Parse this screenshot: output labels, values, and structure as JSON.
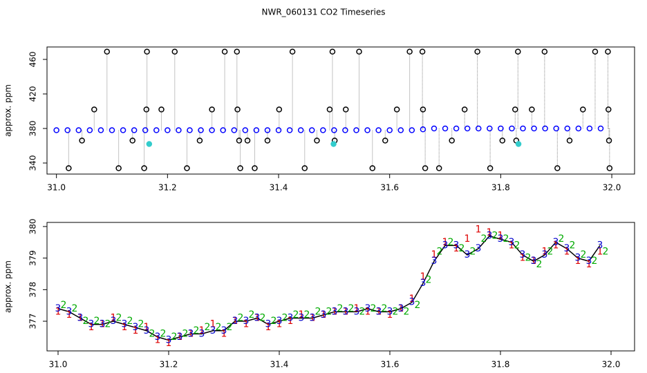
{
  "title": "NWR_060131  CO2 Timeseries",
  "chart_data": [
    {
      "type": "scatter",
      "ylabel": "approx. ppm",
      "xlim": [
        30.983,
        32.041
      ],
      "ylim": [
        327.2,
        474.4
      ],
      "xticks": [
        {
          "value": 31,
          "label": "31.0"
        },
        {
          "value": 31.2,
          "label": "31.2"
        },
        {
          "value": 31.4,
          "label": "31.4"
        },
        {
          "value": 31.6,
          "label": "31.6"
        },
        {
          "value": 31.8,
          "label": "31.8"
        },
        {
          "value": 32,
          "label": "32.0"
        }
      ],
      "yticks": [
        340,
        380,
        420,
        460
      ],
      "series": [
        {
          "color": "#0000ff",
          "x": [
            31.0,
            31.02,
            31.04,
            31.06,
            31.08,
            31.1,
            31.12,
            31.14,
            31.16,
            31.18,
            31.2,
            31.22,
            31.24,
            31.26,
            31.28,
            31.3,
            31.32,
            31.34,
            31.36,
            31.38,
            31.4,
            31.42,
            31.44,
            31.46,
            31.48,
            31.5,
            31.52,
            31.54,
            31.56,
            31.58,
            31.6,
            31.62,
            31.64,
            31.66,
            31.68,
            31.7,
            31.72,
            31.74,
            31.76,
            31.78,
            31.8,
            31.82,
            31.84,
            31.86,
            31.88,
            31.9,
            31.92,
            31.94,
            31.96,
            31.98
          ],
          "values": [
            378,
            378,
            378,
            378,
            378,
            378,
            378,
            378,
            378,
            378,
            378,
            378,
            378,
            378,
            378,
            378,
            378,
            378,
            378,
            378,
            378,
            378,
            378,
            378,
            378,
            378,
            378,
            378,
            378,
            378,
            378,
            378,
            378,
            379,
            380,
            380,
            380,
            380,
            380,
            380,
            380,
            380,
            380,
            380,
            380,
            380,
            380,
            380,
            380,
            380
          ]
        },
        {
          "color": "#000000",
          "stems": true,
          "x": [
            31.022,
            31.046,
            31.068,
            31.091,
            31.112,
            31.137,
            31.158,
            31.162,
            31.163,
            31.189,
            31.213,
            31.235,
            31.258,
            31.28,
            31.303,
            31.325,
            31.326,
            31.329,
            31.331,
            31.344,
            31.357,
            31.38,
            31.401,
            31.425,
            31.447,
            31.469,
            31.492,
            31.497,
            31.501,
            31.521,
            31.545,
            31.569,
            31.592,
            31.613,
            31.636,
            31.659,
            31.66,
            31.664,
            31.689,
            31.712,
            31.735,
            31.758,
            31.781,
            31.803,
            31.826,
            31.828,
            31.831,
            31.856,
            31.879,
            31.902,
            31.924,
            31.948,
            31.97,
            31.993,
            31.994,
            31.995,
            31.996
          ],
          "values": [
            334,
            366,
            402,
            469,
            334,
            366,
            334,
            402,
            469,
            402,
            469,
            334,
            366,
            402,
            469,
            469,
            402,
            366,
            334,
            366,
            334,
            366,
            402,
            469,
            334,
            366,
            402,
            469,
            366,
            402,
            469,
            334,
            366,
            402,
            469,
            469,
            402,
            334,
            334,
            366,
            402,
            469,
            334,
            366,
            402,
            366,
            469,
            402,
            469,
            334,
            366,
            402,
            469,
            469,
            402,
            366,
            334
          ]
        },
        {
          "color": "#33cccc",
          "x": [
            31.167,
            31.499,
            31.832
          ],
          "values": [
            362,
            362,
            362
          ]
        }
      ]
    },
    {
      "type": "symbols",
      "ylabel": "approx. ppm",
      "xlim": [
        30.98,
        32.0425
      ],
      "ylim": [
        376.06,
        380.13
      ],
      "xticks": [
        {
          "value": 31,
          "label": "31.0"
        },
        {
          "value": 31.2,
          "label": "31.2"
        },
        {
          "value": 31.4,
          "label": "31.4"
        },
        {
          "value": 31.6,
          "label": "31.6"
        },
        {
          "value": 31.8,
          "label": "31.8"
        },
        {
          "value": 32,
          "label": "32.0"
        }
      ],
      "yticks": [
        377,
        378,
        379,
        380
      ],
      "series": [
        {
          "color": "#dd0000",
          "symbol": "1",
          "x": [
            31.0,
            31.02,
            31.04,
            31.06,
            31.08,
            31.1,
            31.12,
            31.14,
            31.16,
            31.18,
            31.2,
            31.22,
            31.24,
            31.26,
            31.28,
            31.3,
            31.32,
            31.34,
            31.36,
            31.38,
            31.4,
            31.42,
            31.44,
            31.46,
            31.48,
            31.5,
            31.52,
            31.54,
            31.56,
            31.58,
            31.6,
            31.62,
            31.64,
            31.66,
            31.68,
            31.7,
            31.72,
            31.74,
            31.76,
            31.78,
            31.8,
            31.82,
            31.84,
            31.86,
            31.88,
            31.9,
            31.92,
            31.94,
            31.96,
            31.98
          ],
          "values": [
            377.3,
            377.2,
            377.1,
            376.8,
            376.9,
            377.1,
            376.8,
            376.7,
            376.8,
            376.4,
            376.3,
            376.5,
            376.6,
            376.7,
            376.9,
            376.6,
            377.0,
            376.9,
            377.1,
            376.8,
            376.9,
            377.0,
            377.2,
            377.1,
            377.2,
            377.3,
            377.3,
            377.4,
            377.3,
            377.3,
            377.2,
            377.4,
            377.7,
            378.4,
            379.1,
            379.5,
            379.3,
            379.6,
            379.9,
            379.8,
            379.7,
            379.4,
            379.0,
            378.9,
            379.2,
            379.4,
            379.2,
            378.9,
            378.8,
            379.2
          ]
        },
        {
          "color": "#00aa00",
          "symbol": "2",
          "x": [
            31.01,
            31.03,
            31.05,
            31.07,
            31.09,
            31.11,
            31.13,
            31.15,
            31.17,
            31.19,
            31.21,
            31.23,
            31.25,
            31.27,
            31.29,
            31.31,
            31.33,
            31.35,
            31.37,
            31.39,
            31.41,
            31.43,
            31.45,
            31.47,
            31.49,
            31.51,
            31.53,
            31.55,
            31.57,
            31.59,
            31.61,
            31.63,
            31.65,
            31.67,
            31.69,
            31.71,
            31.73,
            31.75,
            31.77,
            31.79,
            31.81,
            31.83,
            31.85,
            31.87,
            31.89,
            31.91,
            31.93,
            31.95,
            31.97,
            31.99
          ],
          "values": [
            377.5,
            377.4,
            377.0,
            377.0,
            376.9,
            377.1,
            377.0,
            376.9,
            376.6,
            376.6,
            376.5,
            376.6,
            376.7,
            376.8,
            376.8,
            376.8,
            377.1,
            377.2,
            377.1,
            377.0,
            377.1,
            377.2,
            377.2,
            377.3,
            377.3,
            377.4,
            377.4,
            377.3,
            377.4,
            377.4,
            377.3,
            377.3,
            377.5,
            378.3,
            379.2,
            379.5,
            379.3,
            379.2,
            379.6,
            379.7,
            379.6,
            379.4,
            379.0,
            378.8,
            379.2,
            379.6,
            379.4,
            379.1,
            378.9,
            379.2
          ]
        },
        {
          "color": "#0000cc",
          "symbol": "3",
          "line": true,
          "x": [
            31.0,
            31.02,
            31.04,
            31.06,
            31.08,
            31.1,
            31.12,
            31.14,
            31.16,
            31.18,
            31.2,
            31.22,
            31.24,
            31.26,
            31.28,
            31.3,
            31.32,
            31.34,
            31.36,
            31.38,
            31.4,
            31.42,
            31.44,
            31.46,
            31.48,
            31.5,
            31.52,
            31.54,
            31.56,
            31.58,
            31.6,
            31.62,
            31.64,
            31.66,
            31.68,
            31.7,
            31.72,
            31.74,
            31.76,
            31.78,
            31.8,
            31.82,
            31.84,
            31.86,
            31.88,
            31.9,
            31.92,
            31.94,
            31.96,
            31.98
          ],
          "values": [
            377.4,
            377.3,
            377.1,
            376.9,
            376.9,
            377.0,
            376.9,
            376.8,
            376.7,
            376.5,
            376.4,
            376.5,
            376.6,
            376.6,
            376.7,
            376.7,
            377.0,
            377.0,
            377.1,
            376.9,
            377.0,
            377.1,
            377.1,
            377.1,
            377.2,
            377.3,
            377.3,
            377.3,
            377.4,
            377.3,
            377.3,
            377.4,
            377.6,
            378.2,
            378.9,
            379.4,
            379.4,
            379.1,
            379.3,
            379.7,
            379.6,
            379.5,
            379.1,
            378.9,
            379.1,
            379.5,
            379.3,
            379.0,
            378.9,
            379.4
          ]
        }
      ]
    }
  ]
}
